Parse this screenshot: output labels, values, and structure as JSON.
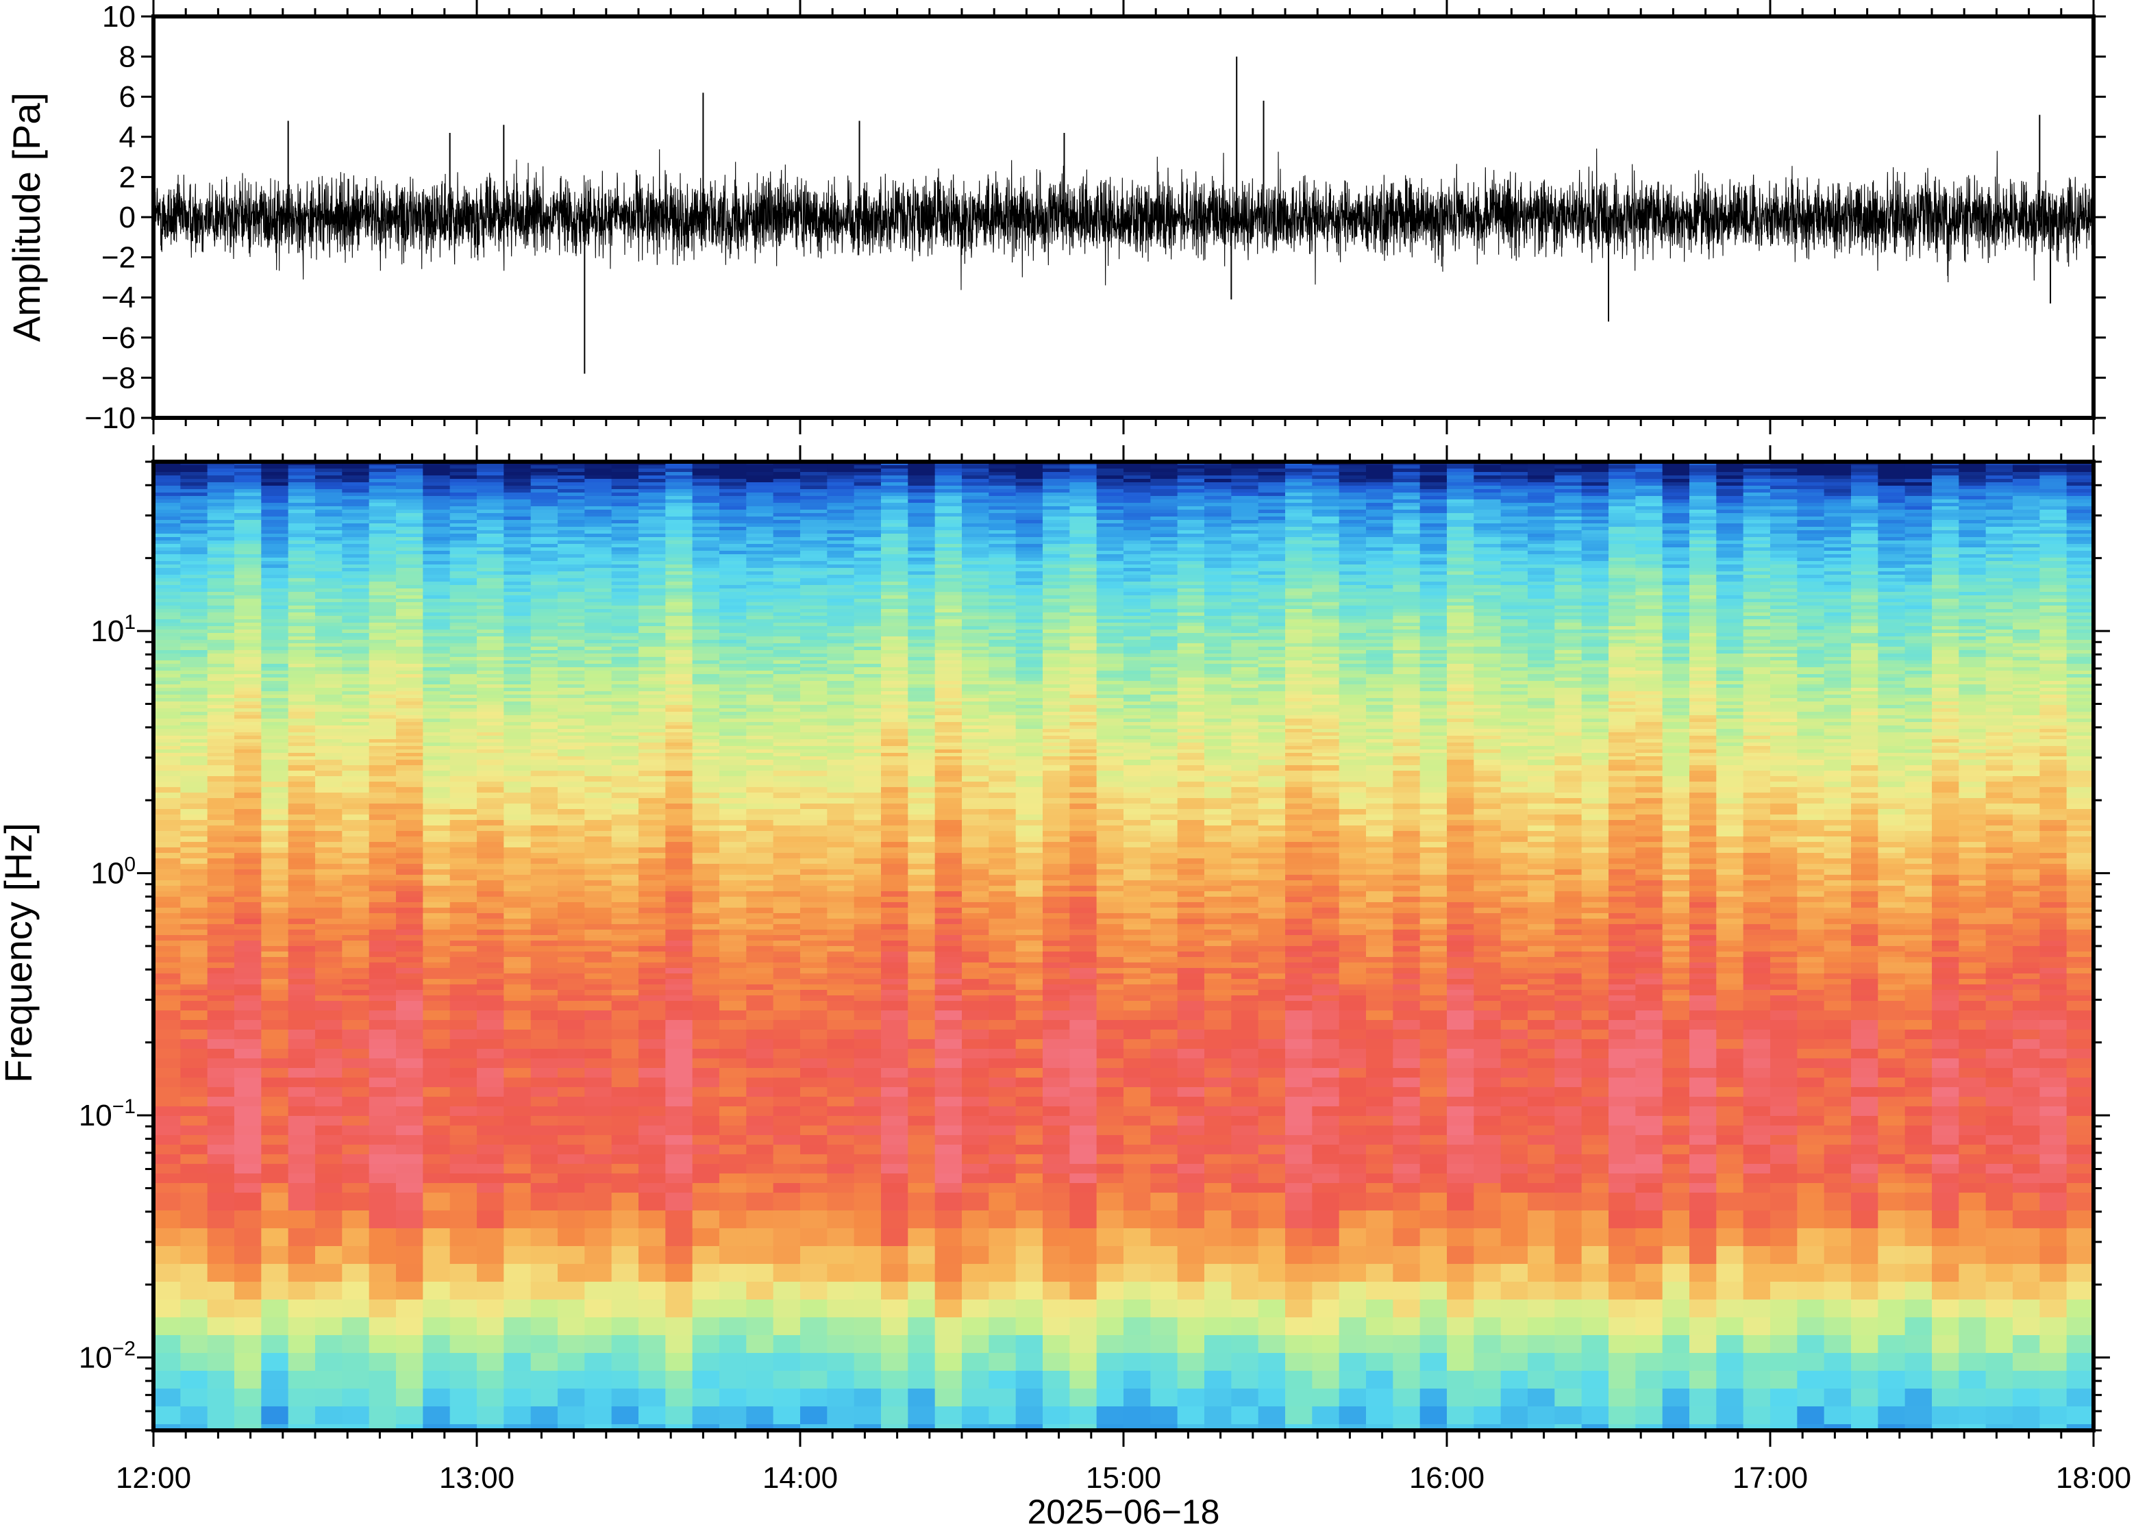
{
  "chart_data": [
    {
      "type": "line",
      "panel": "waveform",
      "ylabel": "Amplitude [Pa]",
      "ylim": [
        -10,
        10
      ],
      "y_ticks": [
        "10",
        "8",
        "6",
        "4",
        "2",
        "0",
        "−2",
        "−4",
        "−6",
        "−8",
        "−10"
      ],
      "y_tick_values": [
        10,
        8,
        6,
        4,
        2,
        0,
        -2,
        -4,
        -6,
        -8,
        -10
      ],
      "xlim": [
        "12:00",
        "18:00"
      ],
      "series": [
        {
          "color": "#000000",
          "typical_envelope_pa": 2,
          "spikes": [
            {
              "time": "12:25",
              "value": 4.8
            },
            {
              "time": "12:55",
              "value": 4.2
            },
            {
              "time": "13:05",
              "value": 4.6
            },
            {
              "time": "13:20",
              "value": -7.8
            },
            {
              "time": "13:42",
              "value": 6.2
            },
            {
              "time": "14:11",
              "value": 4.8
            },
            {
              "time": "14:49",
              "value": 4.2
            },
            {
              "time": "15:20",
              "value": -4.1
            },
            {
              "time": "15:21",
              "value": 8.0
            },
            {
              "time": "15:26",
              "value": 5.8
            },
            {
              "time": "16:30",
              "value": -5.2
            },
            {
              "time": "17:50",
              "value": 5.1
            },
            {
              "time": "17:52",
              "value": -4.3
            }
          ]
        }
      ]
    },
    {
      "type": "heatmap",
      "panel": "spectrogram",
      "ylabel": "Frequency [Hz]",
      "y_scale": "log",
      "ylim_hz": [
        0.005,
        50
      ],
      "y_ticks": [
        {
          "base": "10",
          "exp": "1",
          "value": 10
        },
        {
          "base": "10",
          "exp": "0",
          "value": 1
        },
        {
          "base": "10",
          "exp": "−1",
          "value": 0.1
        },
        {
          "base": "10",
          "exp": "−2",
          "value": 0.01
        }
      ],
      "xlim": [
        "12:00",
        "18:00"
      ],
      "colormap": [
        "#0b1a6e",
        "#1f5bd6",
        "#2f9be8",
        "#57d8ef",
        "#7fe6c4",
        "#c6f08f",
        "#f2ea8a",
        "#f7b85a",
        "#f58a45",
        "#ef5a4f",
        "#f37480"
      ],
      "power_profile": [
        {
          "freq_hz": 0.006,
          "level": 0.28
        },
        {
          "freq_hz": 0.012,
          "level": 0.45
        },
        {
          "freq_hz": 0.025,
          "level": 0.72
        },
        {
          "freq_hz": 0.06,
          "level": 0.92
        },
        {
          "freq_hz": 0.2,
          "level": 0.93
        },
        {
          "freq_hz": 0.6,
          "level": 0.82
        },
        {
          "freq_hz": 2,
          "level": 0.66
        },
        {
          "freq_hz": 6,
          "level": 0.52
        },
        {
          "freq_hz": 15,
          "level": 0.38
        },
        {
          "freq_hz": 35,
          "level": 0.2
        },
        {
          "freq_hz": 48,
          "level": 0.02
        }
      ]
    }
  ],
  "x_axis": {
    "ticks": [
      "12:00",
      "13:00",
      "14:00",
      "15:00",
      "16:00",
      "17:00",
      "18:00"
    ],
    "date_label": "2025−06−18"
  }
}
